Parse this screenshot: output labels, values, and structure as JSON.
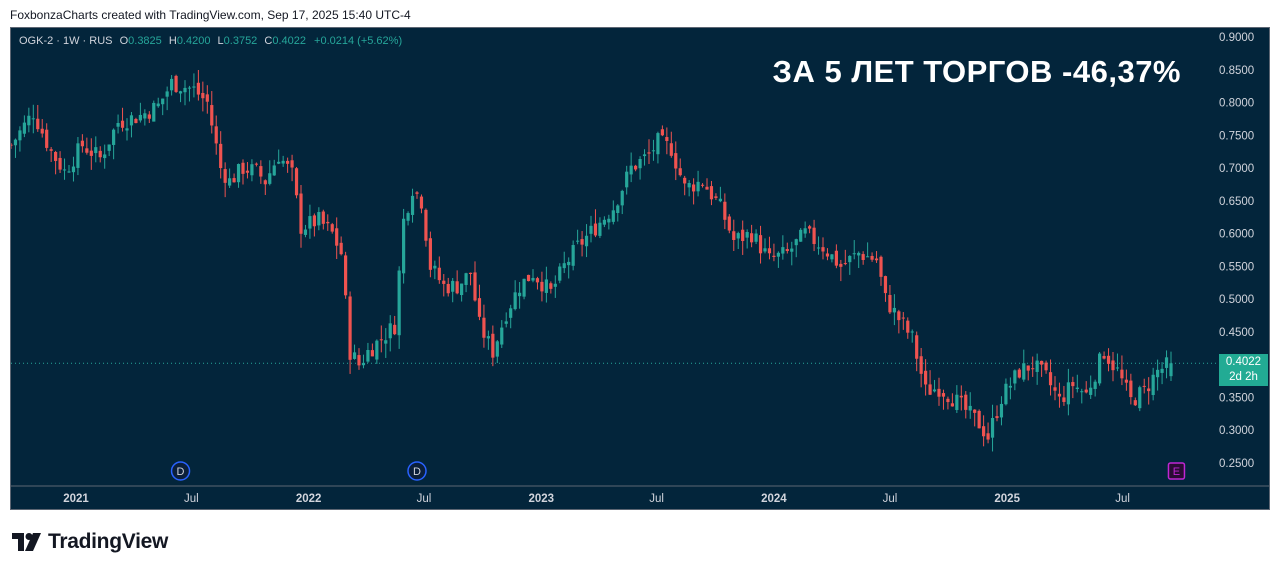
{
  "credit": "FoxbonzaCharts created with TradingView.com, Sep 17, 2025 15:40 UTC-4",
  "legend": {
    "symbol": "OGK-2 · 1W · RUS",
    "o_label": "O",
    "o_value": "0.3825",
    "h_label": "H",
    "h_value": "0.4200",
    "l_label": "L",
    "l_value": "0.3752",
    "c_label": "C",
    "c_value": "0.4022",
    "change": "+0.0214 (+5.62%)"
  },
  "headline": "ЗА 5 ЛЕТ ТОРГОВ -46,37%",
  "price_badge": {
    "price": "0.4022",
    "countdown": "2d 2h"
  },
  "brand": "TradingView",
  "colors": {
    "background": "#03253b",
    "up": "#26a69a",
    "down": "#ef5350",
    "badge": "#22ab94",
    "event_d": "#2962ff",
    "event_e": "#c026d3"
  },
  "events": [
    {
      "label": "D",
      "date": "2021-06-14"
    },
    {
      "label": "D",
      "date": "2022-06-20"
    },
    {
      "label": "E",
      "date": "2025-09-22"
    }
  ],
  "chart_data": {
    "type": "candlestick",
    "interval": "1W",
    "y_ticks": [
      "0.2500",
      "0.3000",
      "0.3500",
      "0.4000",
      "0.4500",
      "0.5000",
      "0.5500",
      "0.6000",
      "0.6500",
      "0.7000",
      "0.7500",
      "0.8000",
      "0.8500",
      "0.9000"
    ],
    "x_labels": [
      {
        "label": "2021",
        "date": "2021-01-01"
      },
      {
        "label": "Jul",
        "date": "2021-07-01"
      },
      {
        "label": "2022",
        "date": "2022-01-01"
      },
      {
        "label": "Jul",
        "date": "2022-07-01"
      },
      {
        "label": "2023",
        "date": "2023-01-01"
      },
      {
        "label": "Jul",
        "date": "2023-07-01"
      },
      {
        "label": "2024",
        "date": "2024-01-01"
      },
      {
        "label": "Jul",
        "date": "2024-07-01"
      },
      {
        "label": "2025",
        "date": "2025-01-01"
      },
      {
        "label": "Jul",
        "date": "2025-07-01"
      }
    ],
    "last_price": 0.4022,
    "close_path": [
      [
        "2020-09-21",
        0.735
      ],
      [
        "2020-10-26",
        0.785
      ],
      [
        "2020-11-23",
        0.725
      ],
      [
        "2020-12-14",
        0.695
      ],
      [
        "2021-01-11",
        0.735
      ],
      [
        "2021-02-08",
        0.715
      ],
      [
        "2021-03-08",
        0.77
      ],
      [
        "2021-04-12",
        0.78
      ],
      [
        "2021-05-10",
        0.795
      ],
      [
        "2021-05-31",
        0.83
      ],
      [
        "2021-07-05",
        0.82
      ],
      [
        "2021-07-26",
        0.8
      ],
      [
        "2021-08-16",
        0.7
      ],
      [
        "2021-08-30",
        0.68
      ],
      [
        "2021-09-20",
        0.7
      ],
      [
        "2021-10-11",
        0.695
      ],
      [
        "2021-10-25",
        0.68
      ],
      [
        "2021-11-15",
        0.72
      ],
      [
        "2021-12-06",
        0.69
      ],
      [
        "2021-12-20",
        0.61
      ],
      [
        "2022-01-17",
        0.62
      ],
      [
        "2022-02-07",
        0.6
      ],
      [
        "2022-02-21",
        0.57
      ],
      [
        "2022-03-07",
        0.42
      ],
      [
        "2022-03-21",
        0.4
      ],
      [
        "2022-04-04",
        0.42
      ],
      [
        "2022-04-25",
        0.44
      ],
      [
        "2022-05-16",
        0.46
      ],
      [
        "2022-05-30",
        0.62
      ],
      [
        "2022-06-13",
        0.67
      ],
      [
        "2022-06-27",
        0.65
      ],
      [
        "2022-07-11",
        0.55
      ],
      [
        "2022-08-01",
        0.52
      ],
      [
        "2022-08-22",
        0.52
      ],
      [
        "2022-09-12",
        0.54
      ],
      [
        "2022-09-26",
        0.46
      ],
      [
        "2022-10-17",
        0.42
      ],
      [
        "2022-11-07",
        0.48
      ],
      [
        "2022-11-28",
        0.52
      ],
      [
        "2022-12-19",
        0.54
      ],
      [
        "2023-01-16",
        0.51
      ],
      [
        "2023-02-06",
        0.55
      ],
      [
        "2023-02-27",
        0.58
      ],
      [
        "2023-03-27",
        0.61
      ],
      [
        "2023-04-24",
        0.64
      ],
      [
        "2023-05-22",
        0.7
      ],
      [
        "2023-06-19",
        0.72
      ],
      [
        "2023-07-03",
        0.74
      ],
      [
        "2023-07-24",
        0.73
      ],
      [
        "2023-08-14",
        0.67
      ],
      [
        "2023-09-11",
        0.68
      ],
      [
        "2023-10-09",
        0.64
      ],
      [
        "2023-10-30",
        0.59
      ],
      [
        "2023-11-27",
        0.6
      ],
      [
        "2023-12-25",
        0.56
      ],
      [
        "2024-01-22",
        0.57
      ],
      [
        "2024-02-19",
        0.6
      ],
      [
        "2024-03-18",
        0.58
      ],
      [
        "2024-04-15",
        0.55
      ],
      [
        "2024-05-13",
        0.57
      ],
      [
        "2024-06-10",
        0.56
      ],
      [
        "2024-06-24",
        0.5
      ],
      [
        "2024-07-15",
        0.47
      ],
      [
        "2024-08-05",
        0.44
      ],
      [
        "2024-08-26",
        0.36
      ],
      [
        "2024-09-16",
        0.365
      ],
      [
        "2024-10-07",
        0.35
      ],
      [
        "2024-10-28",
        0.33
      ],
      [
        "2024-11-18",
        0.31
      ],
      [
        "2024-12-02",
        0.29
      ],
      [
        "2024-12-23",
        0.35
      ],
      [
        "2025-01-20",
        0.39
      ],
      [
        "2025-02-10",
        0.4
      ],
      [
        "2025-03-03",
        0.38
      ],
      [
        "2025-03-24",
        0.345
      ],
      [
        "2025-04-14",
        0.37
      ],
      [
        "2025-05-05",
        0.355
      ],
      [
        "2025-06-02",
        0.42
      ],
      [
        "2025-06-23",
        0.39
      ],
      [
        "2025-07-14",
        0.345
      ],
      [
        "2025-08-04",
        0.36
      ],
      [
        "2025-08-25",
        0.39
      ],
      [
        "2025-09-15",
        0.4022
      ]
    ]
  }
}
